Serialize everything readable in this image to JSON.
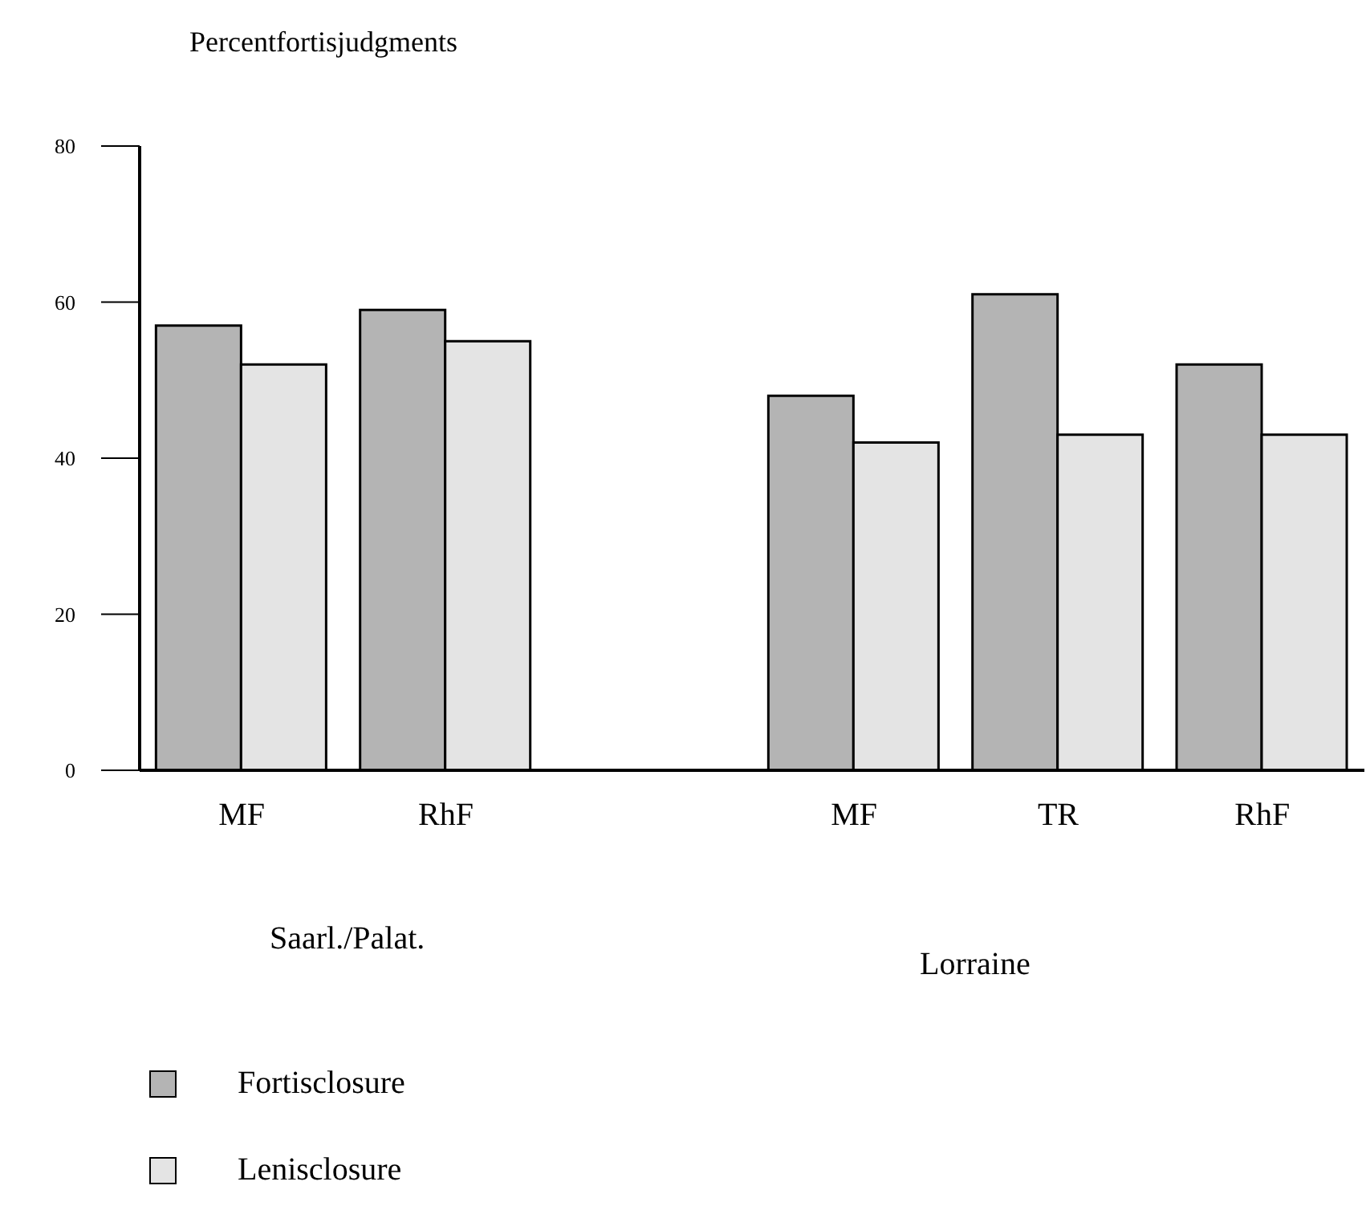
{
  "chart_data": {
    "type": "bar",
    "ylabel": "Percentfortisjudgments",
    "categories": [
      "MF",
      "RhF",
      null,
      "MF",
      "TR",
      "RhF"
    ],
    "series": [
      {
        "name": "Fortisclosure",
        "color": "#b4b4b4",
        "values": [
          57,
          59,
          null,
          48,
          61,
          52
        ]
      },
      {
        "name": "Lenisclosure",
        "color": "#e4e4e4",
        "values": [
          52,
          55,
          null,
          42,
          43,
          43
        ]
      }
    ],
    "ylim": [
      0,
      80
    ],
    "yticks": [
      0,
      20,
      40,
      60,
      80
    ],
    "grid": false,
    "legend": "bottom",
    "annotations": [
      "Saarl./Palat.",
      "Lorraine"
    ]
  }
}
